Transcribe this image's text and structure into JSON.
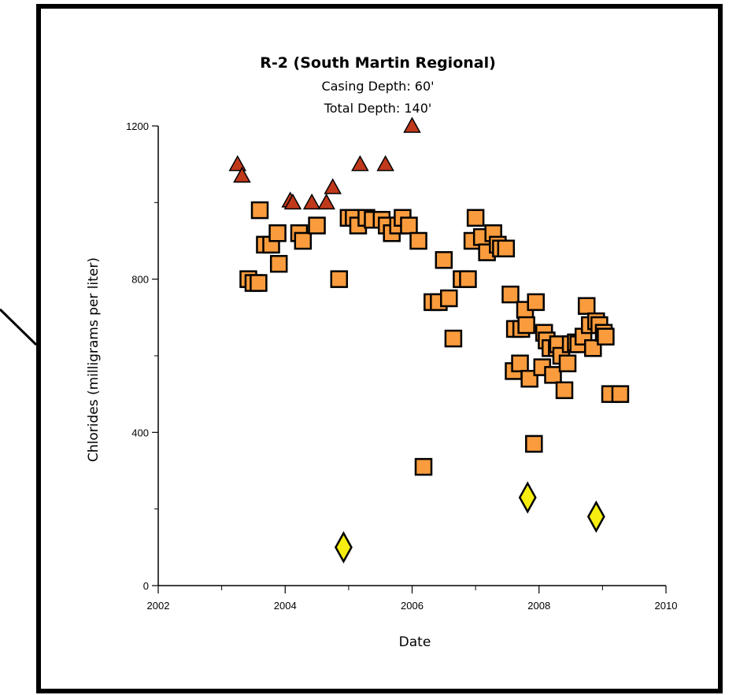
{
  "chart_data": {
    "type": "scatter",
    "title": "R-2 (South Martin Regional)",
    "subtitles": [
      "Casing Depth:  60'",
      "Total Depth:  140'"
    ],
    "xlabel": "Date",
    "ylabel": "Chlorides (milligrams per liter)",
    "xlim": [
      2002,
      2010
    ],
    "ylim": [
      0,
      1200
    ],
    "xticks": [
      2002,
      2004,
      2006,
      2008,
      2010
    ],
    "yticks": [
      0,
      400,
      800,
      1200
    ],
    "xtick_labels": [
      "2002",
      "2004",
      "2006",
      "2008",
      "2010"
    ],
    "ytick_labels": [
      "0",
      "400",
      "800",
      "1200"
    ],
    "grid": false,
    "legend": "none",
    "series": [
      {
        "marker": "triangle",
        "color": "#c0391b",
        "points": [
          [
            2003.25,
            1100
          ],
          [
            2003.32,
            1070
          ],
          [
            2004.08,
            1005
          ],
          [
            2004.12,
            1000
          ],
          [
            2004.42,
            1000
          ],
          [
            2004.65,
            1000
          ],
          [
            2004.75,
            1040
          ],
          [
            2005.18,
            1100
          ],
          [
            2005.58,
            1100
          ],
          [
            2006.0,
            1200
          ]
        ]
      },
      {
        "marker": "square",
        "color": "#fa9c3d",
        "points": [
          [
            2003.42,
            800
          ],
          [
            2003.5,
            790
          ],
          [
            2003.58,
            790
          ],
          [
            2003.6,
            980
          ],
          [
            2003.68,
            890
          ],
          [
            2003.78,
            890
          ],
          [
            2003.88,
            920
          ],
          [
            2003.9,
            840
          ],
          [
            2004.22,
            920
          ],
          [
            2004.28,
            900
          ],
          [
            2004.5,
            940
          ],
          [
            2004.85,
            800
          ],
          [
            2005.0,
            960
          ],
          [
            2005.08,
            960
          ],
          [
            2005.15,
            940
          ],
          [
            2005.28,
            960
          ],
          [
            2005.38,
            955
          ],
          [
            2005.52,
            955
          ],
          [
            2005.6,
            940
          ],
          [
            2005.68,
            920
          ],
          [
            2005.78,
            940
          ],
          [
            2005.85,
            960
          ],
          [
            2005.95,
            940
          ],
          [
            2006.1,
            900
          ],
          [
            2006.18,
            310
          ],
          [
            2006.32,
            740
          ],
          [
            2006.42,
            740
          ],
          [
            2006.5,
            850
          ],
          [
            2006.58,
            750
          ],
          [
            2006.65,
            645
          ],
          [
            2006.78,
            800
          ],
          [
            2006.88,
            800
          ],
          [
            2006.95,
            900
          ],
          [
            2007.0,
            960
          ],
          [
            2007.1,
            910
          ],
          [
            2007.18,
            870
          ],
          [
            2007.28,
            920
          ],
          [
            2007.35,
            890
          ],
          [
            2007.4,
            880
          ],
          [
            2007.48,
            880
          ],
          [
            2007.55,
            760
          ],
          [
            2007.6,
            560
          ],
          [
            2007.62,
            670
          ],
          [
            2007.7,
            580
          ],
          [
            2007.72,
            670
          ],
          [
            2007.78,
            720
          ],
          [
            2007.8,
            680
          ],
          [
            2007.85,
            540
          ],
          [
            2007.92,
            370
          ],
          [
            2007.95,
            740
          ],
          [
            2008.05,
            570
          ],
          [
            2008.08,
            660
          ],
          [
            2008.12,
            640
          ],
          [
            2008.18,
            620
          ],
          [
            2008.22,
            550
          ],
          [
            2008.28,
            620
          ],
          [
            2008.3,
            630
          ],
          [
            2008.35,
            600
          ],
          [
            2008.4,
            510
          ],
          [
            2008.45,
            580
          ],
          [
            2008.5,
            630
          ],
          [
            2008.58,
            635
          ],
          [
            2008.62,
            630
          ],
          [
            2008.7,
            650
          ],
          [
            2008.75,
            730
          ],
          [
            2008.8,
            680
          ],
          [
            2008.85,
            620
          ],
          [
            2008.9,
            690
          ],
          [
            2008.95,
            680
          ],
          [
            2009.02,
            660
          ],
          [
            2009.05,
            650
          ],
          [
            2009.12,
            500
          ],
          [
            2009.28,
            500
          ]
        ]
      },
      {
        "marker": "diamond",
        "color": "#f5ee10",
        "points": [
          [
            2004.92,
            100
          ],
          [
            2007.82,
            230
          ],
          [
            2008.9,
            180
          ]
        ]
      }
    ]
  }
}
